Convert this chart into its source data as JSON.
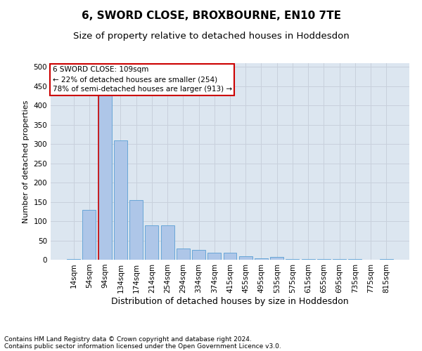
{
  "title": "6, SWORD CLOSE, BROXBOURNE, EN10 7TE",
  "subtitle": "Size of property relative to detached houses in Hoddesdon",
  "xlabel": "Distribution of detached houses by size in Hoddesdon",
  "ylabel": "Number of detached properties",
  "footnote1": "Contains HM Land Registry data © Crown copyright and database right 2024.",
  "footnote2": "Contains public sector information licensed under the Open Government Licence v3.0.",
  "bar_labels": [
    "14sqm",
    "54sqm",
    "94sqm",
    "134sqm",
    "174sqm",
    "214sqm",
    "254sqm",
    "294sqm",
    "334sqm",
    "374sqm",
    "415sqm",
    "455sqm",
    "495sqm",
    "535sqm",
    "575sqm",
    "615sqm",
    "655sqm",
    "695sqm",
    "735sqm",
    "775sqm",
    "815sqm"
  ],
  "bar_values": [
    2,
    130,
    440,
    310,
    155,
    90,
    90,
    30,
    25,
    18,
    18,
    9,
    4,
    7,
    2,
    2,
    1,
    1,
    1,
    0,
    1
  ],
  "bar_color": "#aec6e8",
  "bar_edge_color": "#5a9fd4",
  "vline_color": "#cc0000",
  "annotation_text": "6 SWORD CLOSE: 109sqm\n← 22% of detached houses are smaller (254)\n78% of semi-detached houses are larger (913) →",
  "annotation_box_color": "#cc0000",
  "annotation_text_color": "#000000",
  "ylim": [
    0,
    510
  ],
  "yticks": [
    0,
    50,
    100,
    150,
    200,
    250,
    300,
    350,
    400,
    450,
    500
  ],
  "grid_color": "#c8d0dc",
  "bg_color": "#dce6f0",
  "title_fontsize": 11,
  "subtitle_fontsize": 9.5,
  "xlabel_fontsize": 9,
  "ylabel_fontsize": 8,
  "tick_fontsize": 7.5,
  "annot_fontsize": 7.5,
  "footnote_fontsize": 6.5
}
